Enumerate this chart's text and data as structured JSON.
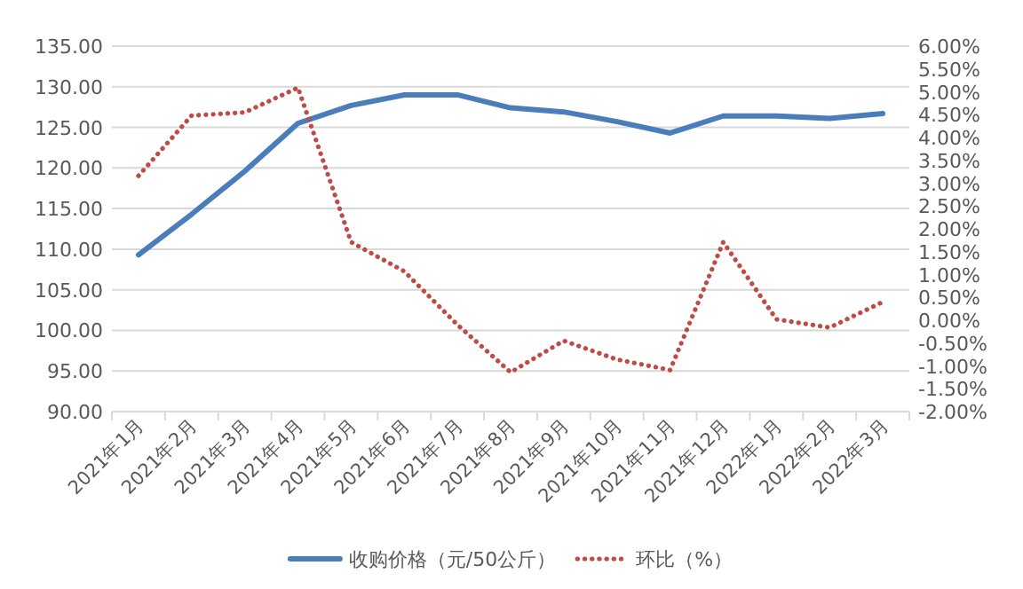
{
  "chart_data": {
    "type": "line",
    "categories": [
      "2021年1月",
      "2021年2月",
      "2021年3月",
      "2021年4月",
      "2021年5月",
      "2021年6月",
      "2021年7月",
      "2021年8月",
      "2021年9月",
      "2021年10月",
      "2021年11月",
      "2021年12月",
      "2022年1月",
      "2022年2月",
      "2022年3月"
    ],
    "series": [
      {
        "name": "收购价格（元/50公斤）",
        "color": "#4a7ebb",
        "line_style": "solid",
        "values": [
          109.3,
          114.3,
          119.6,
          125.5,
          127.7,
          129.0,
          129.0,
          127.4,
          126.9,
          125.7,
          124.3,
          126.4,
          126.4,
          126.1,
          126.7
        ]
      },
      {
        "name": "环比（%）",
        "color": "#be4b48",
        "line_style": "dotted",
        "axis": "y2",
        "values": [
          3.16,
          4.48,
          4.55,
          5.09,
          1.71,
          1.07,
          -0.1,
          -1.14,
          -0.45,
          -0.86,
          -1.09,
          1.71,
          0.02,
          -0.16,
          0.4
        ]
      }
    ],
    "ylim": [
      90,
      135
    ],
    "yticks": [
      {
        "value": 90,
        "label": "90.00"
      },
      {
        "value": 95,
        "label": "95.00"
      },
      {
        "value": 100,
        "label": "100.00"
      },
      {
        "value": 105,
        "label": "105.00"
      },
      {
        "value": 110,
        "label": "110.00"
      },
      {
        "value": 115,
        "label": "115.00"
      },
      {
        "value": 120,
        "label": "120.00"
      },
      {
        "value": 125,
        "label": "125.00"
      },
      {
        "value": 130,
        "label": "130.00"
      },
      {
        "value": 135,
        "label": "135.00"
      }
    ],
    "y2lim": [
      -2,
      6
    ],
    "y2ticks": [
      {
        "value": -2,
        "label": "-2.00%"
      },
      {
        "value": -1.5,
        "label": "-1.50%"
      },
      {
        "value": -1,
        "label": "-1.00%"
      },
      {
        "value": -0.5,
        "label": "-0.50%"
      },
      {
        "value": 0,
        "label": "0.00%"
      },
      {
        "value": 0.5,
        "label": "0.50%"
      },
      {
        "value": 1,
        "label": "1.00%"
      },
      {
        "value": 1.5,
        "label": "1.50%"
      },
      {
        "value": 2,
        "label": "2.00%"
      },
      {
        "value": 2.5,
        "label": "2.50%"
      },
      {
        "value": 3,
        "label": "3.00%"
      },
      {
        "value": 3.5,
        "label": "3.50%"
      },
      {
        "value": 4,
        "label": "4.00%"
      },
      {
        "value": 4.5,
        "label": "4.50%"
      },
      {
        "value": 5,
        "label": "5.00%"
      },
      {
        "value": 5.5,
        "label": "5.50%"
      },
      {
        "value": 6,
        "label": "6.00%"
      }
    ],
    "grid": "y",
    "legend": "bottom"
  }
}
